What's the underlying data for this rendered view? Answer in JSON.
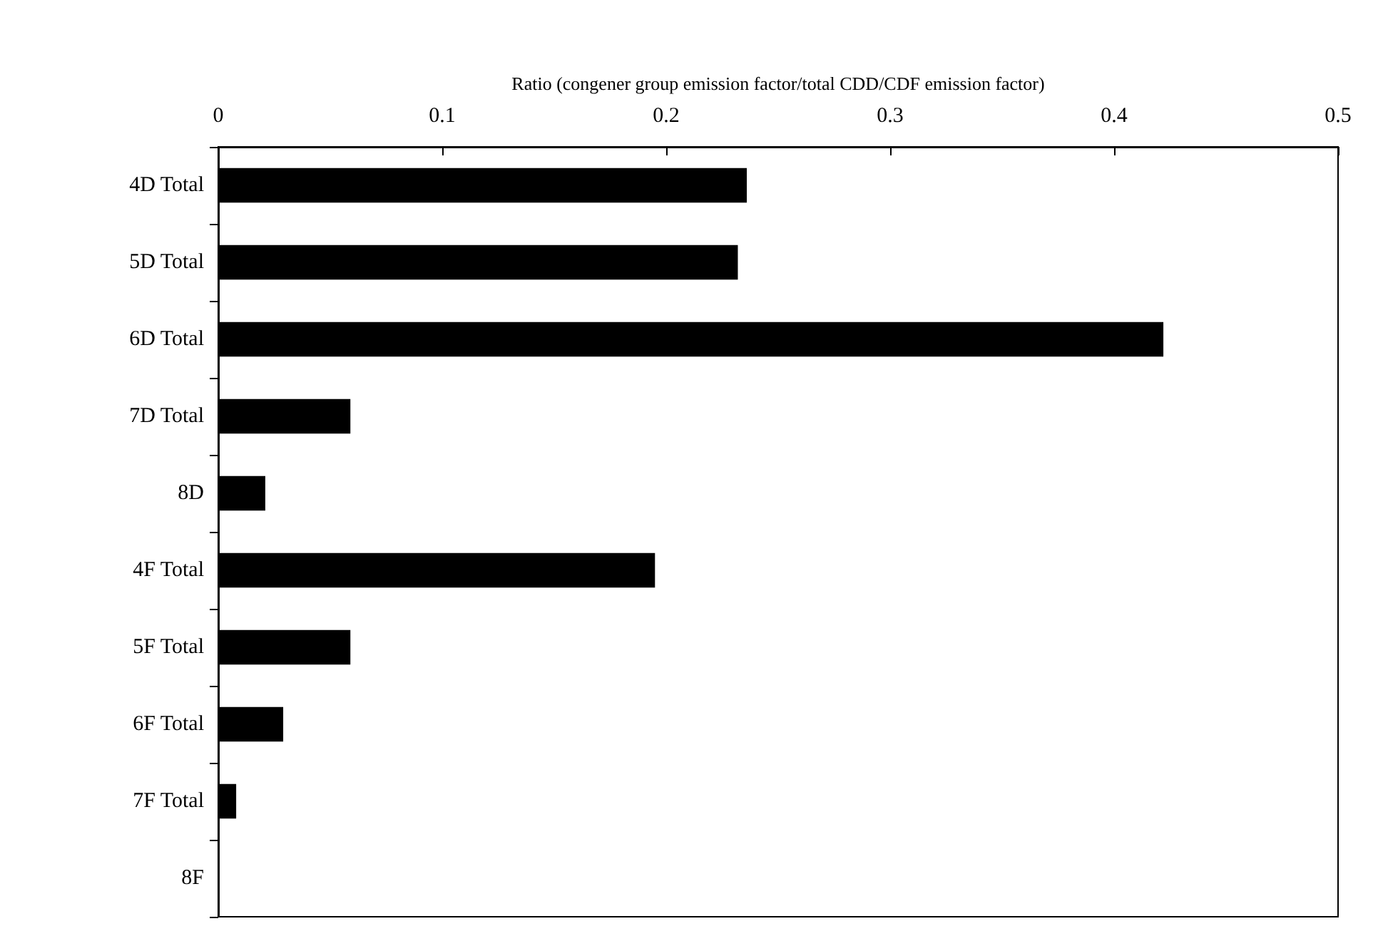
{
  "chart_data": {
    "type": "bar",
    "orientation": "horizontal",
    "xlabel": "Ratio (congener group emission factor/total CDD/CDF emission factor)",
    "categories": [
      "4D Total",
      "5D Total",
      "6D Total",
      "7D Total",
      "8D",
      "4F Total",
      "5F Total",
      "6F Total",
      "7F Total",
      "8F"
    ],
    "values": [
      0.236,
      0.232,
      0.422,
      0.059,
      0.021,
      0.195,
      0.059,
      0.029,
      0.008,
      0
    ],
    "color": "#000000",
    "xlim": [
      0,
      0.5
    ],
    "xticks": [
      0,
      0.1,
      0.2,
      0.3,
      0.4,
      0.5
    ],
    "grid": false
  }
}
